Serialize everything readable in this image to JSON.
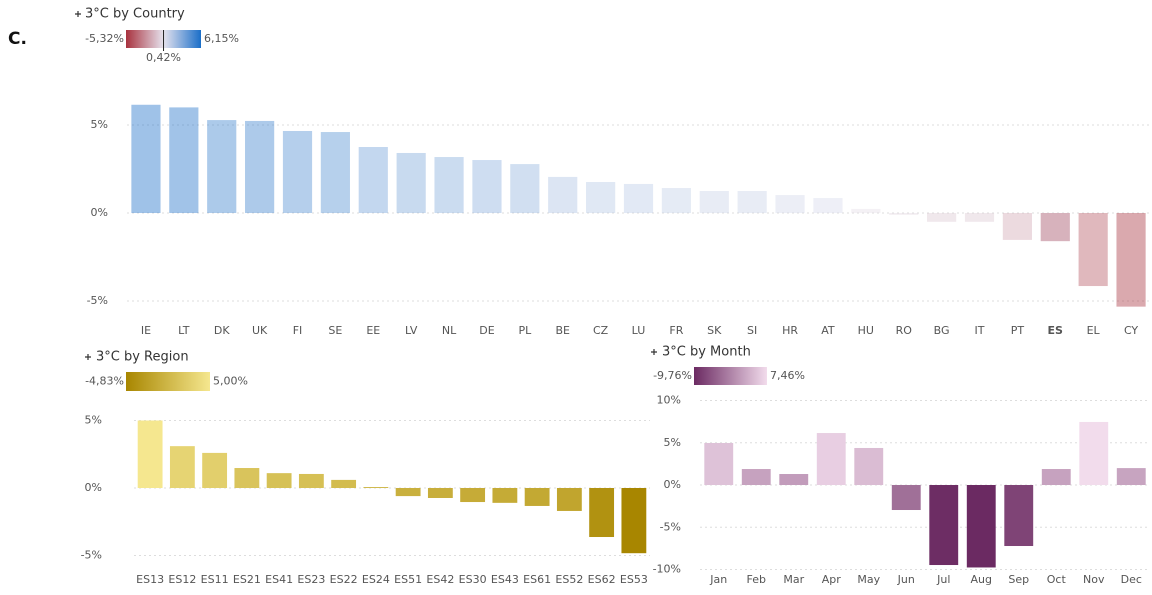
{
  "panel_label": "C.",
  "chart_data": [
    {
      "type": "bar",
      "title": "3°C by Country",
      "categories": [
        "IE",
        "LT",
        "DK",
        "UK",
        "FI",
        "SE",
        "EE",
        "LV",
        "NL",
        "DE",
        "PL",
        "BE",
        "CZ",
        "LU",
        "FR",
        "SK",
        "SI",
        "HR",
        "AT",
        "HU",
        "RO",
        "BG",
        "IT",
        "PT",
        "ES",
        "EL",
        "CY"
      ],
      "values": [
        6.15,
        6.0,
        5.28,
        5.23,
        4.66,
        4.6,
        3.75,
        3.41,
        3.18,
        3.01,
        2.78,
        2.05,
        1.76,
        1.65,
        1.42,
        1.25,
        1.25,
        1.02,
        0.85,
        0.23,
        -0.1,
        -0.5,
        -0.5,
        -1.53,
        -1.6,
        -4.15,
        -5.32
      ],
      "highlight": 24,
      "ylim": [
        -5.5,
        7
      ],
      "yticks": [
        {
          "value": -5,
          "label": "-5%"
        },
        {
          "value": 0,
          "label": "0%"
        },
        {
          "value": 5,
          "label": "5%"
        }
      ],
      "grid": true,
      "color_scale": {
        "min": {
          "value": -5.32,
          "label": "-5,32%"
        },
        "mid": {
          "value": 0.42,
          "label": "0,42%"
        },
        "max": {
          "value": 6.15,
          "label": "6,15%"
        },
        "colors": [
          "#a8323e",
          "#e6e3ee",
          "#1a6ec8"
        ]
      }
    },
    {
      "type": "bar",
      "title": "3°C by Region",
      "categories": [
        "ES13",
        "ES12",
        "ES11",
        "ES21",
        "ES41",
        "ES23",
        "ES22",
        "ES24",
        "ES51",
        "ES42",
        "ES30",
        "ES43",
        "ES61",
        "ES52",
        "ES62",
        "ES53"
      ],
      "values": [
        5.0,
        3.1,
        2.6,
        1.48,
        1.1,
        1.04,
        0.6,
        0.07,
        -0.6,
        -0.74,
        -1.04,
        -1.1,
        -1.33,
        -1.7,
        -3.63,
        -4.83
      ],
      "ylim": [
        -5.5,
        5.5
      ],
      "yticks": [
        {
          "value": -5,
          "label": "-5%"
        },
        {
          "value": 0,
          "label": "0%"
        },
        {
          "value": 5,
          "label": "5%"
        }
      ],
      "grid": true,
      "color_scale": {
        "min": {
          "value": -4.83,
          "label": "-4,83%"
        },
        "max": {
          "value": 5.0,
          "label": "5,00%"
        },
        "colors": [
          "#a88600",
          "#f5e78f"
        ]
      }
    },
    {
      "type": "bar",
      "title": "3°C by Month",
      "categories": [
        "Jan",
        "Feb",
        "Mar",
        "Apr",
        "May",
        "Jun",
        "Jul",
        "Aug",
        "Sep",
        "Oct",
        "Nov",
        "Dec"
      ],
      "values": [
        4.97,
        1.89,
        1.3,
        6.15,
        4.38,
        -2.96,
        -9.47,
        -9.76,
        -7.22,
        1.89,
        7.46,
        2.0
      ],
      "ylim": [
        -10,
        10
      ],
      "yticks": [
        {
          "value": -10,
          "label": "-10%"
        },
        {
          "value": -5,
          "label": "-5%"
        },
        {
          "value": 0,
          "label": "0%"
        },
        {
          "value": 5,
          "label": "5%"
        },
        {
          "value": 10,
          "label": "10%"
        }
      ],
      "grid": true,
      "color_scale": {
        "min": {
          "value": -9.76,
          "label": "-9,76%"
        },
        "max": {
          "value": 7.46,
          "label": "7,46%"
        },
        "colors": [
          "#6b2a62",
          "#f2dcec"
        ]
      }
    }
  ]
}
